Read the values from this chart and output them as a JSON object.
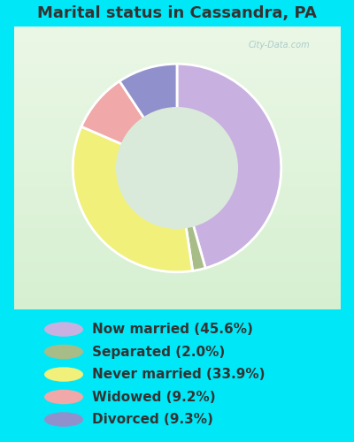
{
  "title": "Marital status in Cassandra, PA",
  "slices": [
    45.6,
    2.0,
    33.9,
    9.2,
    9.3
  ],
  "labels": [
    "Now married (45.6%)",
    "Separated (2.0%)",
    "Never married (33.9%)",
    "Widowed (9.2%)",
    "Divorced (9.3%)"
  ],
  "colors": [
    "#c8b0e0",
    "#a8bc88",
    "#f0f07a",
    "#f0a8a8",
    "#9090cc"
  ],
  "outer_bg": "#00e8f8",
  "chart_bg": "#d8edd8",
  "title_color": "#333333",
  "title_fontsize": 13,
  "legend_fontsize": 11,
  "legend_text_color": "#333333",
  "watermark": "City-Data.com",
  "watermark_color": "#aacccc",
  "start_angle": 90,
  "donut_width": 0.42
}
